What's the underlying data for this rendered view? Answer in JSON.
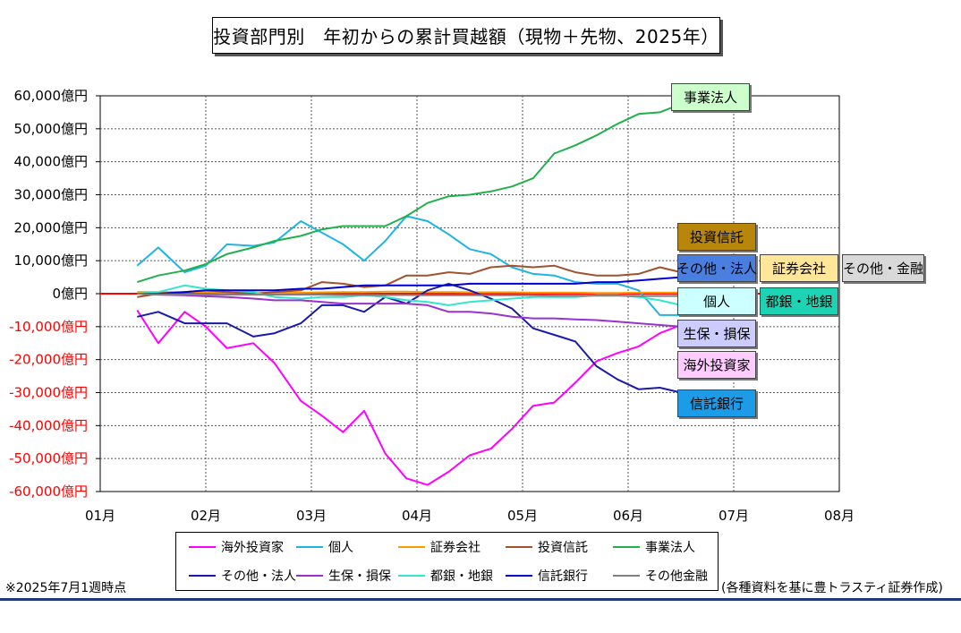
{
  "title": "投資部門別　年初からの累計買越額（現物＋先物、2025年）",
  "note_left": "※2025年7月1週時点",
  "note_right": "(各種資料を基に豊トラスティ証券作成)",
  "chart_data": {
    "type": "line",
    "title": "投資部門別　年初からの累計買越額（現物＋先物、2025年）",
    "xlabel": "",
    "ylabel": "",
    "x_ticks": [
      "01月",
      "02月",
      "03月",
      "04月",
      "05月",
      "06月",
      "07月",
      "08月"
    ],
    "y_ticks": [
      "60,000億円",
      "50,000億円",
      "40,000億円",
      "30,000億円",
      "20,000億円",
      "10,000億円",
      "0億円",
      "-10,000億円",
      "-20,000億円",
      "-30,000億円",
      "-40,000億円",
      "-50,000億円",
      "-60,000億円"
    ],
    "ylim": [
      -60000,
      60000
    ],
    "xlim": [
      0,
      7
    ],
    "grid": true,
    "x": [
      0.35,
      0.55,
      0.8,
      1.0,
      1.2,
      1.45,
      1.65,
      1.9,
      2.1,
      2.3,
      2.5,
      2.7,
      2.9,
      3.1,
      3.3,
      3.5,
      3.7,
      3.9,
      4.1,
      4.3,
      4.5,
      4.7,
      4.9,
      5.1,
      5.3,
      5.5,
      5.7,
      5.9,
      6.07
    ],
    "series": [
      {
        "name": "海外投資家",
        "color": "#ff00ff",
        "values": [
          -5000,
          -15000,
          -5500,
          -10000,
          -16500,
          -15000,
          -21000,
          -32500,
          -37000,
          -42000,
          -35500,
          -48500,
          -56000,
          -58000,
          -54000,
          -49000,
          -47000,
          -41000,
          -34000,
          -33000,
          -27000,
          -20500,
          -18000,
          -16000,
          -12000,
          -9500,
          -9500,
          -9500,
          -9500
        ]
      },
      {
        "name": "個人",
        "color": "#1eb4e6",
        "values": [
          8500,
          14000,
          6500,
          8500,
          15000,
          14500,
          15500,
          22000,
          18500,
          15000,
          10000,
          16000,
          23500,
          22000,
          18000,
          13500,
          12000,
          8000,
          6000,
          5500,
          3500,
          3000,
          3000,
          1000,
          -6500,
          -6500,
          -6500,
          -6500,
          -6500
        ]
      },
      {
        "name": "証券会社",
        "color": "#ff9900",
        "values": [
          500,
          500,
          500,
          400,
          300,
          200,
          200,
          300,
          400,
          500,
          500,
          600,
          600,
          500,
          500,
          400,
          400,
          400,
          300,
          300,
          300,
          200,
          200,
          300,
          300,
          300,
          300,
          300,
          300
        ]
      },
      {
        "name": "投資信託",
        "color": "#a0522d",
        "values": [
          -1000,
          0,
          500,
          1000,
          500,
          0,
          500,
          1000,
          3500,
          3000,
          2000,
          2500,
          5500,
          5500,
          6500,
          6000,
          8000,
          8500,
          8000,
          8500,
          6500,
          5500,
          5500,
          6000,
          8000,
          6500,
          6500,
          6500,
          6500
        ]
      },
      {
        "name": "事業法人",
        "color": "#22b04c",
        "values": [
          3500,
          5500,
          7000,
          9000,
          12000,
          14000,
          16000,
          17500,
          19500,
          20500,
          20500,
          20500,
          23500,
          27500,
          29500,
          30000,
          31000,
          32500,
          35000,
          42500,
          45000,
          48000,
          51500,
          54500,
          55000,
          57500,
          57500,
          57500,
          57500
        ]
      },
      {
        "name": "その他・法人",
        "color": "#1a1aaa",
        "values": [
          -7000,
          -5500,
          -9000,
          -9000,
          -9000,
          -13000,
          -12000,
          -9000,
          -3500,
          -3500,
          -5500,
          -1000,
          -3000,
          1000,
          3000,
          1000,
          -1500,
          -4500,
          -10500,
          -12500,
          -14500,
          -22000,
          -26000,
          -29000,
          -28500,
          -30000,
          -30000,
          -30000,
          -30000
        ]
      },
      {
        "name": "生保・損保",
        "color": "#9933cc",
        "values": [
          0,
          -300,
          -500,
          -800,
          -1000,
          -1500,
          -2000,
          -2000,
          -2500,
          -3000,
          -3000,
          -3000,
          -3000,
          -3500,
          -5500,
          -5500,
          -6000,
          -7000,
          -7500,
          -7500,
          -7800,
          -8000,
          -8500,
          -9000,
          -9500,
          -10000,
          -10000,
          -10000,
          -10000
        ]
      },
      {
        "name": "都銀・地銀",
        "color": "#33e6cc",
        "values": [
          0,
          500,
          2500,
          1500,
          1000,
          500,
          -1000,
          -1500,
          -1000,
          -1000,
          -500,
          -1000,
          -2000,
          -2500,
          -3500,
          -2500,
          -2000,
          -1500,
          -1000,
          -1000,
          -1000,
          -500,
          -500,
          -1000,
          -2000,
          -3500,
          -3500,
          -3500,
          -3500
        ]
      },
      {
        "name": "信託銀行",
        "color": "#0000cc",
        "values": [
          0,
          0,
          500,
          1000,
          1000,
          1000,
          1000,
          1500,
          1500,
          2000,
          2500,
          2500,
          2500,
          2500,
          2500,
          3000,
          3000,
          3000,
          3000,
          3000,
          3000,
          3500,
          3500,
          4000,
          4500,
          5000,
          5000,
          5000,
          5000
        ]
      },
      {
        "name": "その他金融",
        "color": "#808080",
        "values": [
          0,
          -200,
          -200,
          -300,
          -300,
          -300,
          -300,
          -300,
          -300,
          -400,
          -400,
          -400,
          -400,
          -500,
          -500,
          -500,
          -500,
          -500,
          -500,
          -600,
          -600,
          -600,
          -600,
          -700,
          -700,
          -700,
          -700,
          -700,
          -700
        ]
      }
    ],
    "legend_position": "bottom",
    "annotations": [
      {
        "text": "事業法人",
        "bg": "#ccffcc"
      },
      {
        "text": "投資信託",
        "bg": "#b8860b"
      },
      {
        "text": "その他・法人",
        "bg": "#4a7fe0"
      },
      {
        "text": "証券会社",
        "bg": "#ffe699"
      },
      {
        "text": "その他・金融",
        "bg": "#d9d9d9"
      },
      {
        "text": "個人",
        "bg": "#ccffff"
      },
      {
        "text": "都銀・地銀",
        "bg": "#1ed2b4"
      },
      {
        "text": "生保・損保",
        "bg": "#ccccff"
      },
      {
        "text": "海外投資家",
        "bg": "#ffccff"
      },
      {
        "text": "信託銀行",
        "bg": "#1e9be6"
      }
    ],
    "legend": [
      "海外投資家",
      "個人",
      "証券会社",
      "投資信託",
      "事業法人",
      "その他・法人",
      "生保・損保",
      "都銀・地銀",
      "信託銀行",
      "その他金融"
    ]
  }
}
